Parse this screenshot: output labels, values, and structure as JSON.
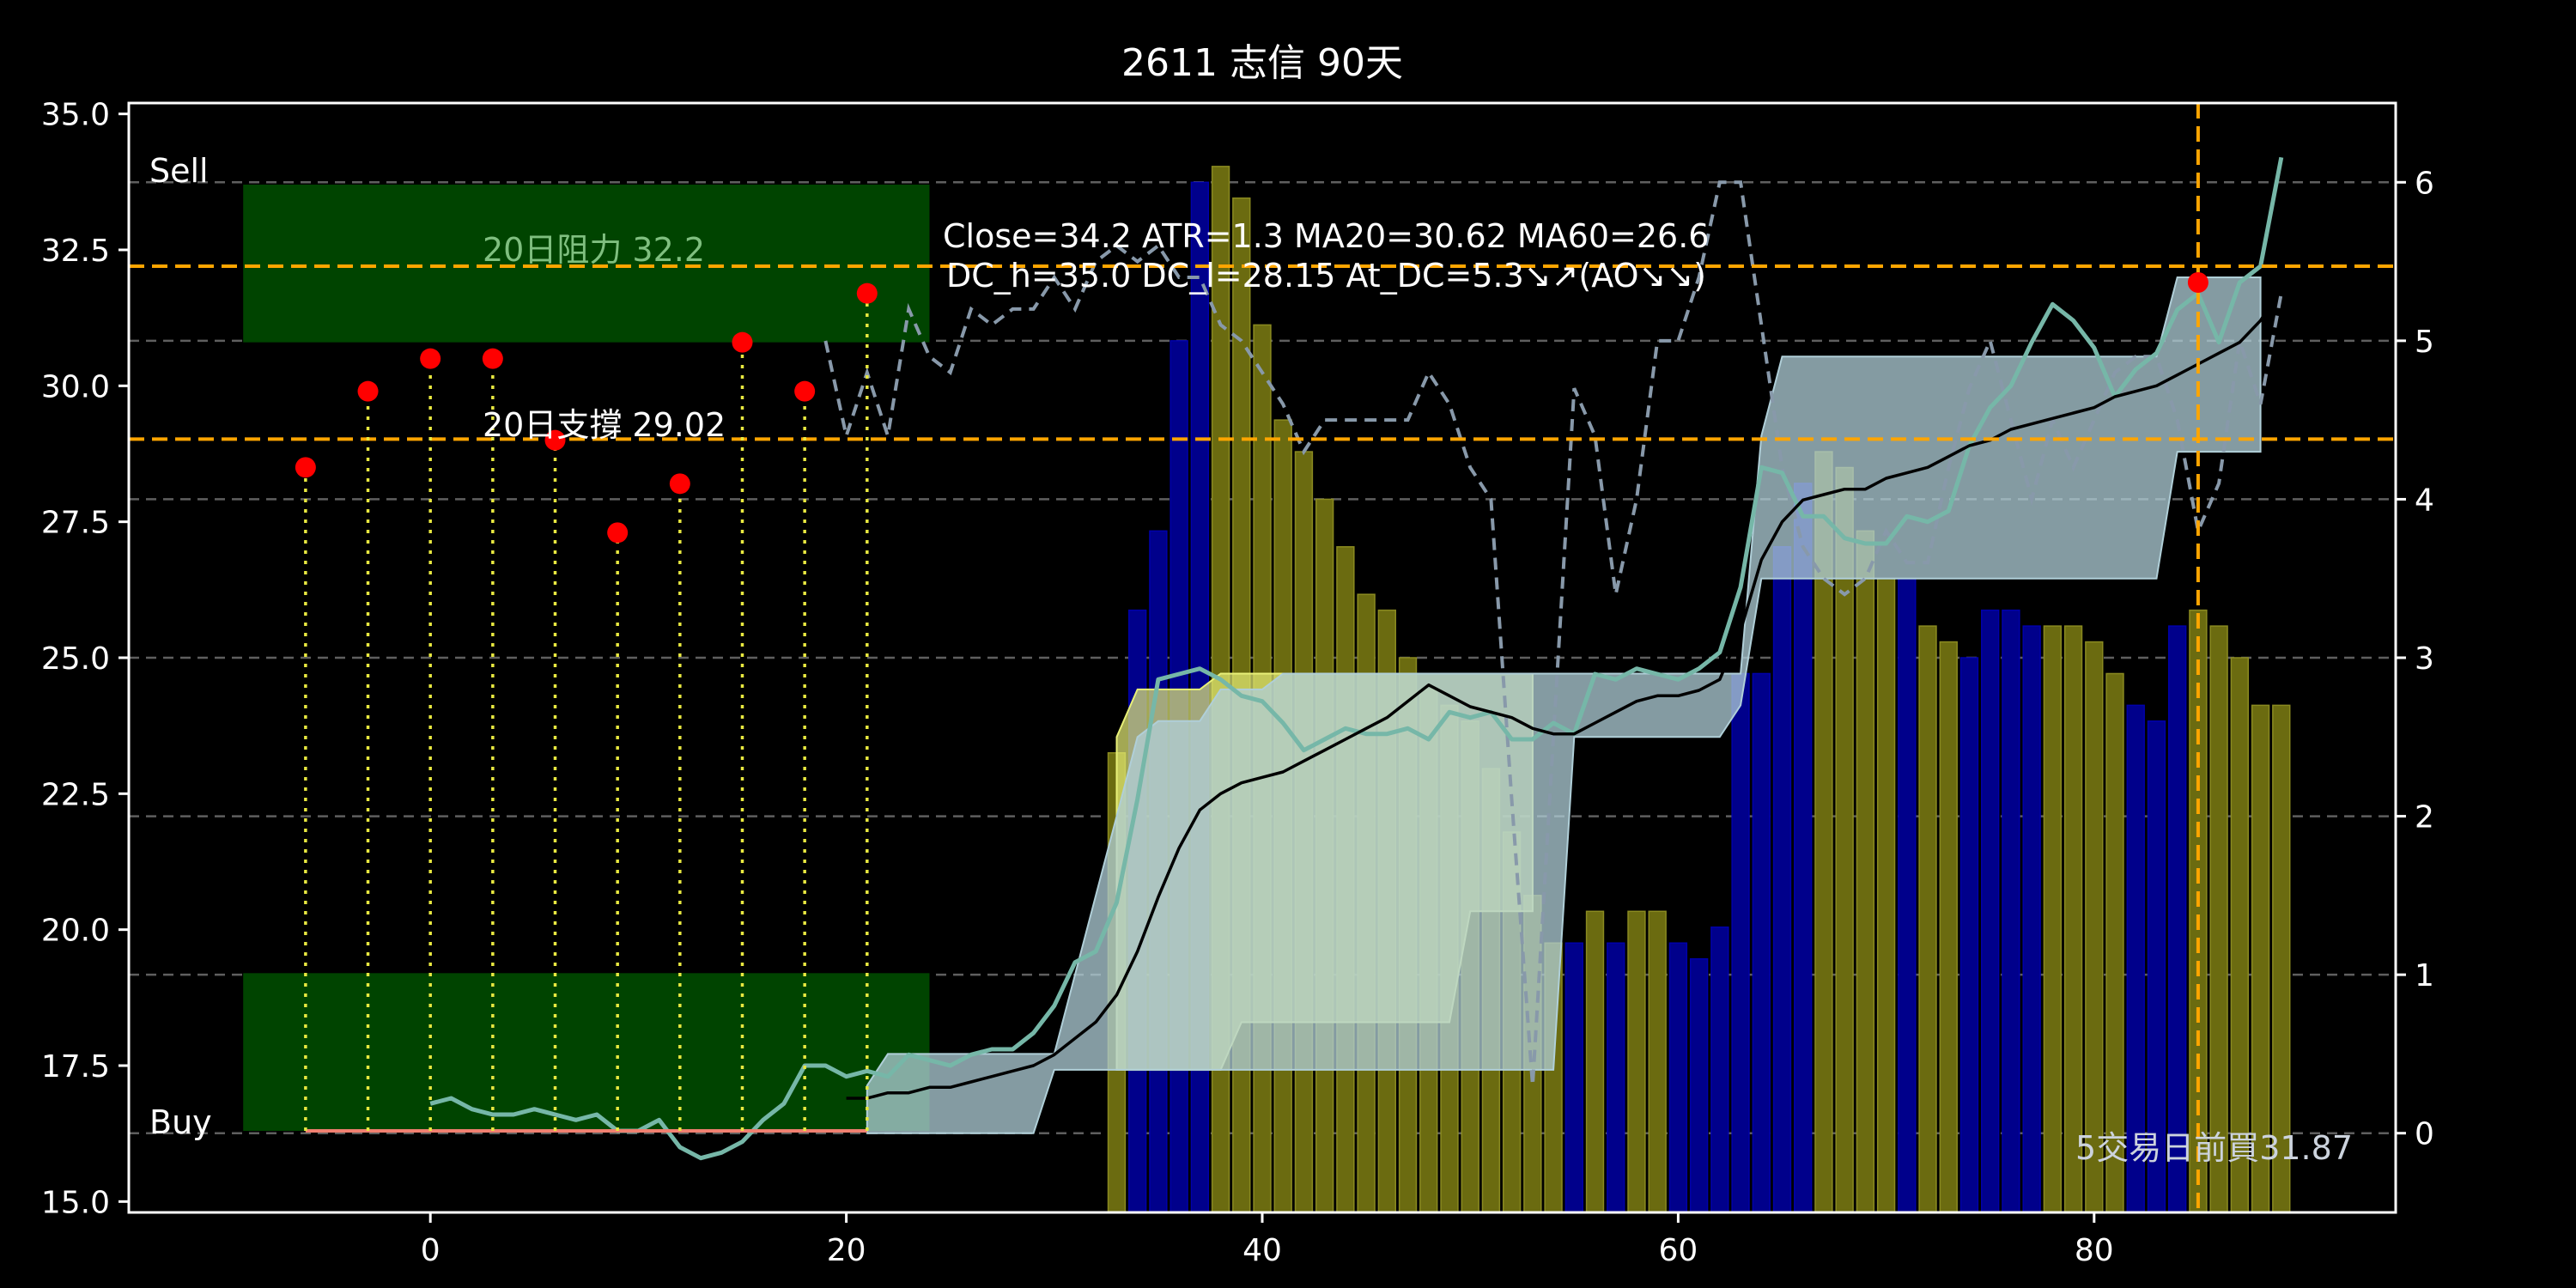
{
  "chart_data": {
    "type": "line",
    "title": "2611 志信 90天",
    "xlim": [
      -14.5,
      94.5
    ],
    "ylim": [
      14.8,
      35.2
    ],
    "y2lim": [
      -0.5,
      6.5
    ],
    "x_ticks": [
      0,
      20,
      40,
      60,
      80
    ],
    "y_ticks": [
      15.0,
      17.5,
      20.0,
      22.5,
      25.0,
      27.5,
      30.0,
      32.5,
      35.0
    ],
    "y_tick_labels": [
      "15.0",
      "17.5",
      "20.0",
      "22.5",
      "25.0",
      "27.5",
      "30.0",
      "32.5",
      "35.0"
    ],
    "y2_ticks": [
      0,
      1,
      2,
      3,
      4,
      5,
      6
    ],
    "grid": "horizontal dashed",
    "colors": {
      "background": "#000000",
      "zone": "#004400",
      "level": "#ffa500",
      "close": "#76b7a8",
      "ma": "#000000",
      "osc": "#8899aa",
      "band": "#b0cfd8",
      "hist_pos": "#6b6b10",
      "hist_neg": "#00008b",
      "stem": "#e8e840",
      "marker": "#ff0000",
      "support_line": "#f08070"
    },
    "annotations": {
      "sell": "Sell",
      "buy": "Buy",
      "resistance": "20日阻力 32.2",
      "support": "20日支撐 29.02",
      "info_line1": "Close=34.2 ATR=1.3 MA20=30.62 MA60=26.6",
      "info_line2": "DC_h=35.0 DC_l=28.15 At_DC=5.3↘↗(AO↘↘)",
      "buy_note": "5交易日前買31.87"
    },
    "levels": {
      "resistance": 32.2,
      "support": 29.02,
      "signal_x": 85
    },
    "zones": [
      {
        "x": [
          -9,
          24
        ],
        "y": [
          30.8,
          33.7
        ]
      },
      {
        "x": [
          -9,
          24
        ],
        "y": [
          16.3,
          19.2
        ]
      }
    ],
    "stems": {
      "x": [
        -6,
        -3,
        0,
        3,
        6,
        9,
        12,
        15,
        18,
        21
      ],
      "y": [
        28.5,
        29.9,
        30.5,
        30.5,
        29.0,
        27.3,
        28.2,
        30.8,
        29.9,
        31.7
      ],
      "base": 16.3
    },
    "signal_point": {
      "x": 85,
      "y": 31.9
    },
    "support_segment": {
      "x": [
        -6,
        21
      ],
      "y": 16.3
    },
    "histogram": {
      "x": [
        33,
        34,
        35,
        36,
        37,
        38,
        39,
        40,
        41,
        42,
        43,
        44,
        45,
        46,
        47,
        48,
        49,
        50,
        51,
        52,
        53,
        54,
        55,
        56,
        57,
        58,
        59,
        60,
        61,
        62,
        63,
        64,
        65,
        66,
        67,
        68,
        69,
        70,
        71,
        72,
        73,
        74,
        75,
        76,
        77,
        78,
        79,
        80,
        81,
        82,
        83,
        84,
        85,
        86,
        87,
        88,
        89
      ],
      "values": [
        2.4,
        3.3,
        3.8,
        5.0,
        6.0,
        6.1,
        5.9,
        5.1,
        4.5,
        4.3,
        4.0,
        3.7,
        3.4,
        3.3,
        3.0,
        2.8,
        2.7,
        2.6,
        2.3,
        1.9,
        1.5,
        1.2,
        1.2,
        1.4,
        1.2,
        1.4,
        1.4,
        1.2,
        1.1,
        1.3,
        2.9,
        2.9,
        3.7,
        4.1,
        4.3,
        4.2,
        3.8,
        3.5,
        3.5,
        3.2,
        3.1,
        3.0,
        3.3,
        3.3,
        3.2,
        3.2,
        3.2,
        3.1,
        2.9,
        2.7,
        2.6,
        3.2,
        3.3,
        3.2,
        3.0,
        2.7,
        2.7
      ],
      "positive": [
        true,
        false,
        false,
        false,
        false,
        true,
        true,
        true,
        true,
        true,
        true,
        true,
        true,
        true,
        true,
        true,
        true,
        true,
        true,
        true,
        true,
        true,
        false,
        true,
        false,
        true,
        true,
        false,
        false,
        false,
        false,
        false,
        false,
        false,
        true,
        true,
        true,
        true,
        false,
        true,
        true,
        false,
        false,
        false,
        false,
        true,
        true,
        true,
        true,
        false,
        false,
        false,
        true,
        true,
        true,
        true,
        true
      ]
    },
    "series": [
      {
        "key": "close",
        "x": [
          0,
          1,
          2,
          3,
          4,
          5,
          6,
          7,
          8,
          9,
          10,
          11,
          12,
          13,
          14,
          15,
          16,
          17,
          18,
          19,
          20,
          21,
          22,
          23,
          24,
          25,
          26,
          27,
          28,
          29,
          30,
          31,
          32,
          33,
          34,
          35,
          36,
          37,
          38,
          39,
          40,
          41,
          42,
          43,
          44,
          45,
          46,
          47,
          48,
          49,
          50,
          51,
          52,
          53,
          54,
          55,
          56,
          57,
          58,
          59,
          60,
          61,
          62,
          63,
          64,
          65,
          66,
          67,
          68,
          69,
          70,
          71,
          72,
          73,
          74,
          75,
          76,
          77,
          78,
          79,
          80,
          81,
          82,
          83,
          84,
          85,
          86,
          87,
          88,
          89
        ],
        "values": [
          16.8,
          16.9,
          16.7,
          16.6,
          16.6,
          16.7,
          16.6,
          16.5,
          16.6,
          16.3,
          16.3,
          16.5,
          16.0,
          15.8,
          15.9,
          16.1,
          16.5,
          16.8,
          17.5,
          17.5,
          17.3,
          17.4,
          17.3,
          17.7,
          17.6,
          17.5,
          17.7,
          17.8,
          17.8,
          18.1,
          18.6,
          19.4,
          19.6,
          20.5,
          22.4,
          24.6,
          24.7,
          24.8,
          24.6,
          24.3,
          24.2,
          23.8,
          23.3,
          23.5,
          23.7,
          23.6,
          23.6,
          23.7,
          23.5,
          24.0,
          23.9,
          24.0,
          23.5,
          23.5,
          23.8,
          23.6,
          24.7,
          24.6,
          24.8,
          24.7,
          24.6,
          24.8,
          25.1,
          26.3,
          28.5,
          28.4,
          27.6,
          27.6,
          27.2,
          27.1,
          27.1,
          27.6,
          27.5,
          27.7,
          28.9,
          29.6,
          30.0,
          30.8,
          31.5,
          31.2,
          30.7,
          29.8,
          30.3,
          30.6,
          31.4,
          31.7,
          30.8,
          31.9,
          32.2,
          34.2
        ]
      },
      {
        "key": "ma",
        "x": [
          20,
          21,
          22,
          23,
          24,
          25,
          26,
          27,
          28,
          29,
          30,
          31,
          32,
          33,
          34,
          35,
          36,
          37,
          38,
          39,
          40,
          41,
          42,
          43,
          44,
          45,
          46,
          47,
          48,
          49,
          50,
          51,
          52,
          53,
          54,
          55,
          56,
          57,
          58,
          59,
          60,
          61,
          62,
          63,
          64,
          65,
          66,
          67,
          68,
          69,
          70,
          71,
          72,
          73,
          74,
          75,
          76,
          77,
          78,
          79,
          80,
          81,
          82,
          83,
          84,
          85,
          86,
          87,
          88,
          89
        ],
        "values": [
          16.9,
          16.9,
          17.0,
          17.0,
          17.1,
          17.1,
          17.2,
          17.3,
          17.4,
          17.5,
          17.7,
          18.0,
          18.3,
          18.8,
          19.6,
          20.6,
          21.5,
          22.2,
          22.5,
          22.7,
          22.8,
          22.9,
          23.1,
          23.3,
          23.5,
          23.7,
          23.9,
          24.2,
          24.5,
          24.3,
          24.1,
          24.0,
          23.9,
          23.7,
          23.6,
          23.6,
          23.8,
          24.0,
          24.2,
          24.3,
          24.3,
          24.4,
          24.6,
          25.5,
          26.8,
          27.5,
          27.9,
          28.0,
          28.1,
          28.1,
          28.3,
          28.4,
          28.5,
          28.7,
          28.9,
          29.0,
          29.2,
          29.3,
          29.4,
          29.5,
          29.6,
          29.8,
          29.9,
          30.0,
          30.2,
          30.4,
          30.6,
          30.8,
          31.2,
          31.8
        ]
      }
    ],
    "osc": {
      "x": [
        19,
        20,
        21,
        22,
        23,
        24,
        25,
        26,
        27,
        28,
        29,
        30,
        31,
        32,
        33,
        34,
        35,
        36,
        37,
        38,
        39,
        40,
        41,
        42,
        43,
        44,
        45,
        46,
        47,
        48,
        49,
        50,
        51,
        52,
        53,
        54,
        55,
        56,
        57,
        58,
        59,
        60,
        61,
        62,
        63,
        64,
        65,
        66,
        67,
        68,
        69,
        70,
        71,
        72,
        73,
        74,
        75,
        76,
        77,
        78,
        79,
        80,
        81,
        82,
        83,
        84,
        85,
        86,
        87,
        88,
        89
      ],
      "values": [
        5.0,
        4.4,
        4.8,
        4.4,
        5.2,
        4.9,
        4.8,
        5.2,
        5.1,
        5.2,
        5.2,
        5.4,
        5.2,
        5.5,
        5.6,
        5.5,
        5.6,
        5.4,
        5.4,
        5.1,
        5.0,
        4.8,
        4.6,
        4.3,
        4.5,
        4.5,
        4.5,
        4.5,
        4.5,
        4.8,
        4.6,
        4.2,
        4.0,
        2.1,
        0.3,
        2.5,
        4.7,
        4.4,
        3.4,
        4.0,
        5.0,
        5.0,
        5.4,
        6.0,
        6.0,
        5.1,
        4.2,
        3.7,
        3.5,
        3.4,
        3.5,
        3.8,
        3.6,
        3.6,
        4.2,
        4.7,
        5.0,
        4.5,
        4.0,
        4.5,
        4.2,
        4.5,
        4.8,
        4.9,
        4.9,
        4.5,
        3.8,
        4.1,
        5.0,
        4.6,
        5.3
      ]
    },
    "bands": [
      {
        "x": [
          33,
          34,
          35,
          36,
          37,
          38,
          39,
          40,
          41,
          42,
          43,
          44,
          45,
          46,
          47,
          48,
          49,
          50,
          51,
          52,
          53
        ],
        "upper": [
          2.5,
          2.8,
          2.8,
          2.8,
          2.8,
          2.9,
          2.9,
          2.9,
          2.9,
          2.9,
          2.9,
          2.9,
          2.9,
          2.9,
          2.9,
          2.9,
          2.9,
          2.9,
          2.9,
          2.9,
          2.9
        ],
        "lower": [
          0.4,
          0.4,
          0.4,
          0.4,
          0.4,
          0.4,
          0.7,
          0.7,
          0.7,
          0.7,
          0.7,
          0.7,
          0.7,
          0.7,
          0.7,
          0.7,
          0.7,
          1.4,
          1.4,
          1.4,
          1.4
        ],
        "color": "#e8f078",
        "opacity": 0.7
      },
      {
        "x": [
          21,
          22,
          23,
          24,
          25,
          26,
          27,
          28,
          29,
          30,
          31,
          32,
          33,
          34,
          35,
          36,
          37,
          38,
          39,
          40,
          41,
          42,
          43,
          44,
          45,
          46,
          47,
          48,
          49,
          50,
          51,
          52,
          53,
          54,
          55,
          56,
          57,
          58,
          59,
          60,
          61,
          62,
          63,
          64,
          65,
          66,
          67,
          68,
          69,
          70,
          71,
          72,
          73,
          74,
          75,
          76,
          77,
          78,
          79,
          80,
          81,
          82,
          83,
          84,
          85,
          86,
          87,
          88
        ],
        "upper": [
          0.3,
          0.5,
          0.5,
          0.5,
          0.5,
          0.5,
          0.5,
          0.5,
          0.5,
          0.5,
          1.0,
          1.5,
          2.0,
          2.5,
          2.6,
          2.6,
          2.6,
          2.8,
          2.8,
          2.8,
          2.9,
          2.9,
          2.9,
          2.9,
          2.9,
          2.9,
          2.9,
          2.9,
          2.9,
          2.9,
          2.9,
          2.9,
          2.9,
          2.9,
          2.9,
          2.9,
          2.9,
          2.9,
          2.9,
          2.9,
          2.9,
          2.9,
          2.9,
          4.4,
          4.9,
          4.9,
          4.9,
          4.9,
          4.9,
          4.9,
          4.9,
          4.9,
          4.9,
          4.9,
          4.9,
          4.9,
          4.9,
          4.9,
          4.9,
          4.9,
          4.9,
          4.9,
          4.9,
          5.4,
          5.4,
          5.4,
          5.4,
          5.4
        ],
        "lower": [
          0.0,
          0.0,
          0.0,
          0.0,
          0.0,
          0.0,
          0.0,
          0.0,
          0.0,
          0.4,
          0.4,
          0.4,
          0.4,
          0.4,
          0.4,
          0.4,
          0.4,
          0.4,
          0.4,
          0.4,
          0.4,
          0.4,
          0.4,
          0.4,
          0.4,
          0.4,
          0.4,
          0.4,
          0.4,
          0.4,
          0.4,
          0.4,
          0.4,
          0.4,
          2.5,
          2.5,
          2.5,
          2.5,
          2.5,
          2.5,
          2.5,
          2.5,
          2.7,
          3.5,
          3.5,
          3.5,
          3.5,
          3.5,
          3.5,
          3.5,
          3.5,
          3.5,
          3.5,
          3.5,
          3.5,
          3.5,
          3.5,
          3.5,
          3.5,
          3.5,
          3.5,
          3.5,
          3.5,
          4.3,
          4.3,
          4.3,
          4.3,
          4.3
        ],
        "color": "#b0cfd8",
        "opacity": 0.75
      }
    ]
  }
}
